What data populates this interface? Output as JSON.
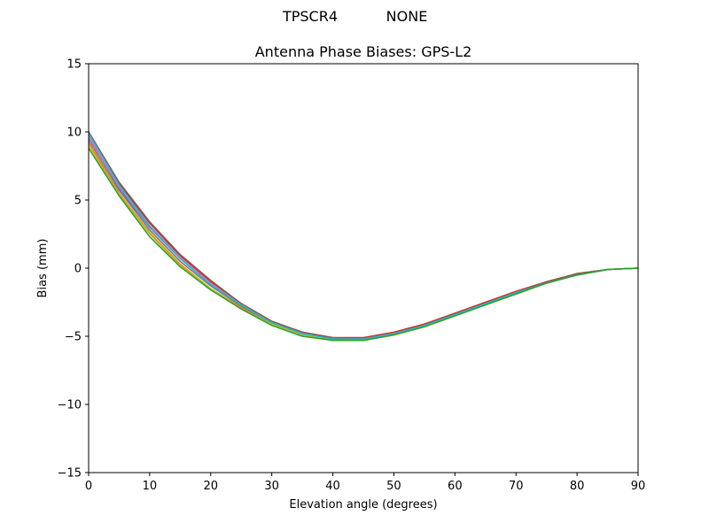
{
  "header": {
    "antenna": "TPSCR4",
    "radome": "NONE"
  },
  "chart_data": {
    "type": "line",
    "title": "Antenna Phase Biases: GPS-L2",
    "xlabel": "Elevation angle (degrees)",
    "ylabel": "Bias (mm)",
    "xlim": [
      0,
      90
    ],
    "ylim": [
      -15,
      15
    ],
    "x_ticks": [
      0,
      10,
      20,
      30,
      40,
      50,
      60,
      70,
      80,
      90
    ],
    "y_ticks": [
      15,
      10,
      5,
      0,
      -5,
      -10,
      -15
    ],
    "y_tick_labels": [
      "15",
      "10",
      "5",
      "0",
      "−5",
      "−10",
      "−15"
    ],
    "grid": false,
    "x": [
      0,
      5,
      10,
      15,
      20,
      25,
      30,
      35,
      40,
      45,
      50,
      55,
      60,
      65,
      70,
      75,
      80,
      85,
      90
    ],
    "series": [
      {
        "color": "#1f77b4",
        "values": [
          9.8,
          5.8,
          2.8,
          0.5,
          -1.3,
          -2.8,
          -4.0,
          -4.8,
          -5.2,
          -5.2,
          -4.8,
          -4.2,
          -3.4,
          -2.6,
          -1.8,
          -1.1,
          -0.5,
          -0.1,
          0.0
        ]
      },
      {
        "color": "#ff7f0e",
        "values": [
          9.2,
          5.5,
          2.6,
          0.3,
          -1.5,
          -2.9,
          -4.1,
          -4.9,
          -5.3,
          -5.3,
          -4.9,
          -4.3,
          -3.5,
          -2.7,
          -1.9,
          -1.1,
          -0.5,
          -0.1,
          0.0
        ]
      },
      {
        "color": "#d62728",
        "values": [
          10.0,
          6.2,
          3.3,
          0.9,
          -1.0,
          -2.6,
          -3.9,
          -4.7,
          -5.1,
          -5.1,
          -4.7,
          -4.1,
          -3.3,
          -2.5,
          -1.7,
          -1.0,
          -0.4,
          -0.1,
          0.0
        ]
      },
      {
        "color": "#9467bd",
        "values": [
          9.6,
          5.9,
          3.0,
          0.7,
          -1.2,
          -2.7,
          -4.0,
          -4.8,
          -5.2,
          -5.2,
          -4.8,
          -4.2,
          -3.4,
          -2.6,
          -1.8,
          -1.1,
          -0.5,
          -0.1,
          0.0
        ]
      },
      {
        "color": "#8c564b",
        "values": [
          10.0,
          6.3,
          3.4,
          1.0,
          -0.9,
          -2.6,
          -3.9,
          -4.7,
          -5.1,
          -5.2,
          -4.8,
          -4.2,
          -3.4,
          -2.6,
          -1.8,
          -1.0,
          -0.4,
          -0.1,
          0.0
        ]
      },
      {
        "color": "#e377c2",
        "values": [
          9.7,
          6.0,
          3.1,
          0.8,
          -1.1,
          -2.7,
          -4.0,
          -4.8,
          -5.2,
          -5.2,
          -4.8,
          -4.2,
          -3.4,
          -2.6,
          -1.8,
          -1.1,
          -0.5,
          -0.1,
          0.0
        ]
      },
      {
        "color": "#7f7f7f",
        "values": [
          9.4,
          5.7,
          2.8,
          0.5,
          -1.3,
          -2.8,
          -4.0,
          -4.8,
          -5.2,
          -5.2,
          -4.8,
          -4.2,
          -3.4,
          -2.6,
          -1.8,
          -1.1,
          -0.5,
          -0.1,
          0.0
        ]
      },
      {
        "color": "#bcbd22",
        "values": [
          9.0,
          5.4,
          2.5,
          0.2,
          -1.5,
          -3.0,
          -4.1,
          -4.9,
          -5.3,
          -5.3,
          -4.9,
          -4.3,
          -3.5,
          -2.7,
          -1.9,
          -1.1,
          -0.5,
          -0.1,
          0.0
        ]
      },
      {
        "color": "#17becf",
        "values": [
          9.9,
          6.1,
          3.1,
          0.7,
          -1.2,
          -2.7,
          -4.0,
          -4.8,
          -5.2,
          -5.2,
          -4.8,
          -4.2,
          -3.4,
          -2.6,
          -1.8,
          -1.1,
          -0.5,
          -0.1,
          0.0
        ]
      },
      {
        "color": "#2ca02c",
        "values": [
          8.8,
          5.3,
          2.3,
          0.1,
          -1.6,
          -3.0,
          -4.2,
          -5.0,
          -5.3,
          -5.3,
          -4.9,
          -4.3,
          -3.5,
          -2.7,
          -1.9,
          -1.1,
          -0.5,
          -0.1,
          0.0
        ]
      }
    ]
  }
}
